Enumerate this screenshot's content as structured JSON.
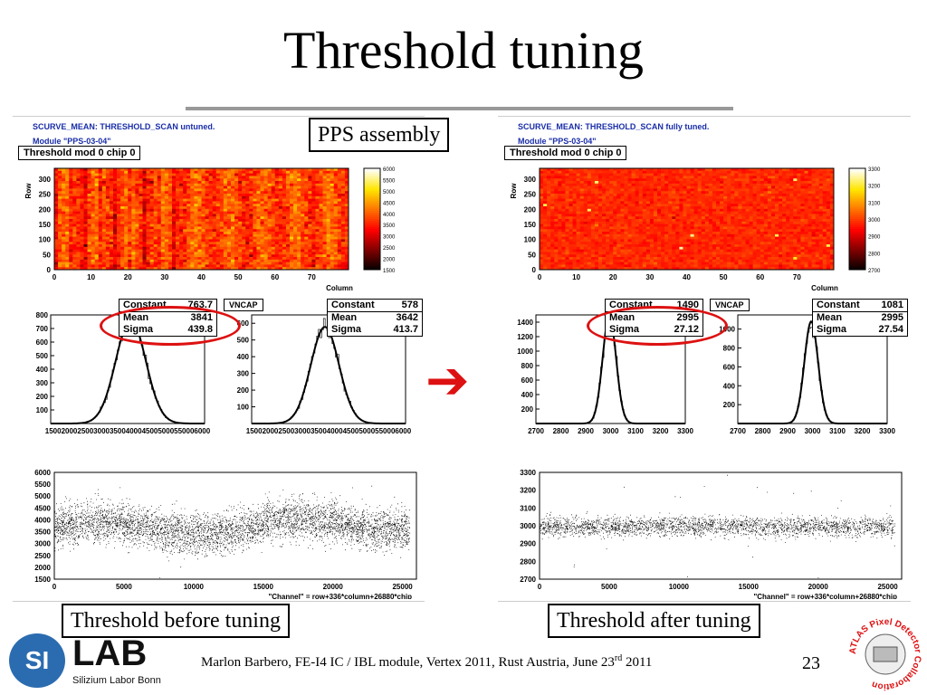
{
  "slide": {
    "title": "Threshold tuning",
    "footer_prefix": "Marlon Barbero, FE-I4 IC / IBL module, Vertex 2011, Rust Austria, June 23",
    "footer_sup": "rd",
    "footer_suffix": " 2011",
    "page_number": "23"
  },
  "labels": {
    "pps": "PPS assembly",
    "before": "Threshold before tuning",
    "after": "Threshold after tuning"
  },
  "arrow_glyph": "➔",
  "colors": {
    "arrow": "#dd1111",
    "circle": "#dd1111",
    "header_text": "#1a2ea8",
    "logo_blue": "#2b6cb0"
  },
  "logos": {
    "si": "SI",
    "lab": "LAB",
    "lab_sub": "Silizium Labor Bonn",
    "atlas": "ATLAS Pixel Detector Collaboration"
  },
  "left": {
    "header_line1": "SCURVE_MEAN: THRESHOLD_SCAN untuned.",
    "header_line2": "Module \"PPS-03-04\"",
    "map_title": "Threshold mod 0 chip 0",
    "map_ylabel": "Row",
    "map_xlabel": "Column",
    "map_xticks": [
      "0",
      "10",
      "20",
      "30",
      "40",
      "50",
      "60",
      "70"
    ],
    "map_yticks": [
      "0",
      "50",
      "100",
      "150",
      "200",
      "250",
      "300"
    ],
    "colorbar_ticks": [
      "6000",
      "5500",
      "5000",
      "4500",
      "4000",
      "3500",
      "3000",
      "2500",
      "2000",
      "1500"
    ],
    "hist1": {
      "constant_label": "Constant",
      "constant": "763.7",
      "mean_label": "Mean",
      "mean": "3841",
      "sigma_label": "Sigma",
      "sigma": "439.8"
    },
    "hist2": {
      "constant_label": "Constant",
      "constant": "578",
      "mean_label": "Mean",
      "mean": "3642",
      "sigma_label": "Sigma",
      "sigma": "413.7"
    },
    "vncap": "VNCAP",
    "hist1_yticks": [
      "100",
      "200",
      "300",
      "400",
      "500",
      "600",
      "700",
      "800"
    ],
    "hist2_yticks": [
      "100",
      "200",
      "300",
      "400",
      "500",
      "600"
    ],
    "hist_xticks": "15002000250030003500400045005000550006000",
    "scatter_yticks": [
      "1500",
      "2000",
      "2500",
      "3000",
      "3500",
      "4000",
      "4500",
      "5000",
      "5500",
      "6000"
    ],
    "scatter_xticks": [
      "0",
      "5000",
      "10000",
      "15000",
      "20000",
      "25000"
    ],
    "scatter_xlabel": "\"Channel\" = row+336*column+26880*chip"
  },
  "right": {
    "header_line1": "SCURVE_MEAN: THRESHOLD_SCAN fully tuned.",
    "header_line2": "Module \"PPS-03-04\"",
    "map_title": "Threshold mod 0 chip 0",
    "map_ylabel": "Row",
    "map_xlabel": "Column",
    "map_xticks": [
      "0",
      "10",
      "20",
      "30",
      "40",
      "50",
      "60",
      "70"
    ],
    "map_yticks": [
      "0",
      "50",
      "100",
      "150",
      "200",
      "250",
      "300"
    ],
    "colorbar_ticks": [
      "3300",
      "3200",
      "3100",
      "3000",
      "2900",
      "2800",
      "2700"
    ],
    "hist1": {
      "constant_label": "Constant",
      "constant": "1490",
      "mean_label": "Mean",
      "mean": "2995",
      "sigma_label": "Sigma",
      "sigma": "27.12"
    },
    "hist2": {
      "constant_label": "Constant",
      "constant": "1081",
      "mean_label": "Mean",
      "mean": "2995",
      "sigma_label": "Sigma",
      "sigma": "27.54"
    },
    "vncap": "VNCAP",
    "hist1_yticks": [
      "200",
      "400",
      "600",
      "800",
      "1000",
      "1200",
      "1400"
    ],
    "hist2_yticks": [
      "200",
      "400",
      "600",
      "800",
      "1000"
    ],
    "hist_xticks": [
      "2700",
      "2800",
      "2900",
      "3000",
      "3100",
      "3200",
      "3300"
    ],
    "scatter_yticks": [
      "2700",
      "2800",
      "2900",
      "3000",
      "3100",
      "3200",
      "3300"
    ],
    "scatter_xticks": [
      "0",
      "5000",
      "10000",
      "15000",
      "20000",
      "25000"
    ],
    "scatter_xlabel": "\"Channel\" = row+336*column+26880*chip"
  },
  "chart_data": [
    {
      "type": "heatmap",
      "title": "Threshold mod 0 chip 0",
      "xlabel": "Column",
      "ylabel": "Row",
      "xlim": [
        0,
        80
      ],
      "ylim": [
        0,
        336
      ],
      "zlim": [
        1500,
        6000
      ]
    },
    {
      "type": "bar",
      "title": "",
      "xlim": [
        1500,
        6000
      ],
      "ylim": [
        0,
        800
      ],
      "constant": 763.7,
      "mean": 3841,
      "sigma": 439.8
    },
    {
      "type": "bar",
      "title": "VNCAP",
      "xlim": [
        1500,
        6000
      ],
      "ylim": [
        0,
        650
      ],
      "constant": 578,
      "mean": 3642,
      "sigma": 413.7
    },
    {
      "type": "scatter",
      "title": "",
      "xlabel": "\"Channel\" = row+336*column+26880*chip",
      "xlim": [
        0,
        26000
      ],
      "ylim": [
        1500,
        6000
      ]
    },
    {
      "type": "heatmap",
      "title": "Threshold mod 0 chip 0",
      "xlabel": "Column",
      "ylabel": "Row",
      "xlim": [
        0,
        80
      ],
      "ylim": [
        0,
        336
      ],
      "zlim": [
        2700,
        3300
      ]
    },
    {
      "type": "bar",
      "title": "",
      "xlim": [
        2700,
        3300
      ],
      "ylim": [
        0,
        1500
      ],
      "constant": 1490,
      "mean": 2995,
      "sigma": 27.12
    },
    {
      "type": "bar",
      "title": "VNCAP",
      "xlim": [
        2700,
        3300
      ],
      "ylim": [
        0,
        1150
      ],
      "constant": 1081,
      "mean": 2995,
      "sigma": 27.54
    },
    {
      "type": "scatter",
      "title": "",
      "xlabel": "\"Channel\" = row+336*column+26880*chip",
      "xlim": [
        0,
        26000
      ],
      "ylim": [
        2700,
        3300
      ]
    }
  ]
}
